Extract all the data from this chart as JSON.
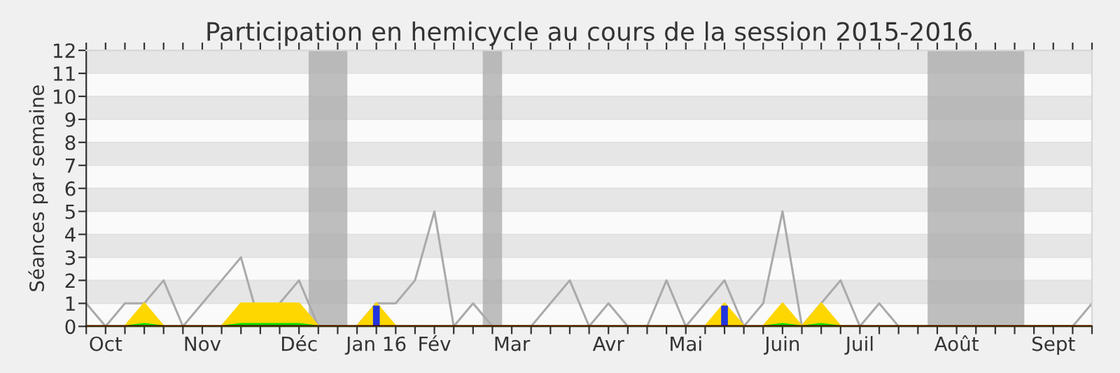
{
  "chart_data": {
    "type": "line",
    "title": "Participation en hemicycle au cours de la session 2015-2016",
    "ylabel": "Séances par semaine",
    "categories": [
      null,
      "Oct",
      null,
      null,
      null,
      null,
      "Nov",
      null,
      null,
      null,
      null,
      "Déc",
      null,
      null,
      null,
      "Jan 16",
      null,
      null,
      "Fév",
      null,
      null,
      null,
      "Mar",
      null,
      null,
      null,
      null,
      "Avr",
      null,
      null,
      null,
      "Mai",
      null,
      null,
      null,
      null,
      "Juin",
      null,
      null,
      null,
      "Juil",
      null,
      null,
      null,
      null,
      "Août",
      null,
      null,
      null,
      null,
      "Sept",
      null,
      null
    ],
    "series": [
      {
        "color": "#aaaaaa",
        "values": [
          1,
          0,
          1,
          1,
          2,
          0,
          1,
          2,
          3,
          0,
          1,
          2,
          0,
          0,
          0,
          1,
          1,
          2,
          5,
          0,
          1,
          0,
          0,
          0,
          1,
          2,
          0,
          1,
          0,
          0,
          2,
          0,
          1,
          2,
          0,
          1,
          5,
          0,
          1,
          2,
          0,
          1,
          0,
          0,
          0,
          0,
          0,
          0,
          0,
          0,
          0,
          0,
          1
        ]
      },
      {
        "type": "area",
        "color": "#ffd700",
        "values": [
          0,
          0,
          0,
          1,
          0,
          0,
          0,
          0,
          1,
          1,
          1,
          1,
          0,
          0,
          0,
          1,
          0,
          0,
          0,
          0,
          0,
          0,
          0,
          0,
          0,
          0,
          0,
          0,
          0,
          0,
          0,
          0,
          0,
          1,
          0,
          0,
          1,
          0,
          1,
          0,
          0,
          0,
          0,
          0,
          0,
          0,
          0,
          0,
          0,
          0,
          0,
          0,
          0
        ]
      },
      {
        "type": "area",
        "color": "#00dd00",
        "values": [
          0,
          0,
          0,
          0.1,
          0,
          0,
          0,
          0,
          0.1,
          0.1,
          0.1,
          0.1,
          0,
          0,
          0,
          0,
          0,
          0,
          0,
          0,
          0,
          0,
          0,
          0,
          0,
          0,
          0,
          0,
          0,
          0,
          0,
          0,
          0,
          0,
          0,
          0,
          0.1,
          0,
          0.1,
          0,
          0,
          0,
          0,
          0,
          0,
          0,
          0,
          0,
          0,
          0,
          0,
          0,
          0
        ]
      },
      {
        "type": "bar",
        "color": "#2233dd",
        "values": [
          0,
          0,
          0,
          0,
          0,
          0,
          0,
          0,
          0,
          0,
          0,
          0,
          0,
          0,
          0,
          0.9,
          0,
          0,
          0,
          0,
          0,
          0,
          0,
          0,
          0,
          0,
          0,
          0,
          0,
          0,
          0,
          0,
          0,
          0.9,
          0,
          0,
          0,
          0,
          0,
          0,
          0,
          0,
          0,
          0,
          0,
          0,
          0,
          0,
          0,
          0,
          0,
          0,
          0
        ]
      }
    ],
    "ylim": [
      0,
      12
    ],
    "yticks": [
      0,
      1,
      2,
      3,
      4,
      5,
      6,
      7,
      8,
      9,
      10,
      11,
      12
    ],
    "grid": true,
    "legend": false
  }
}
